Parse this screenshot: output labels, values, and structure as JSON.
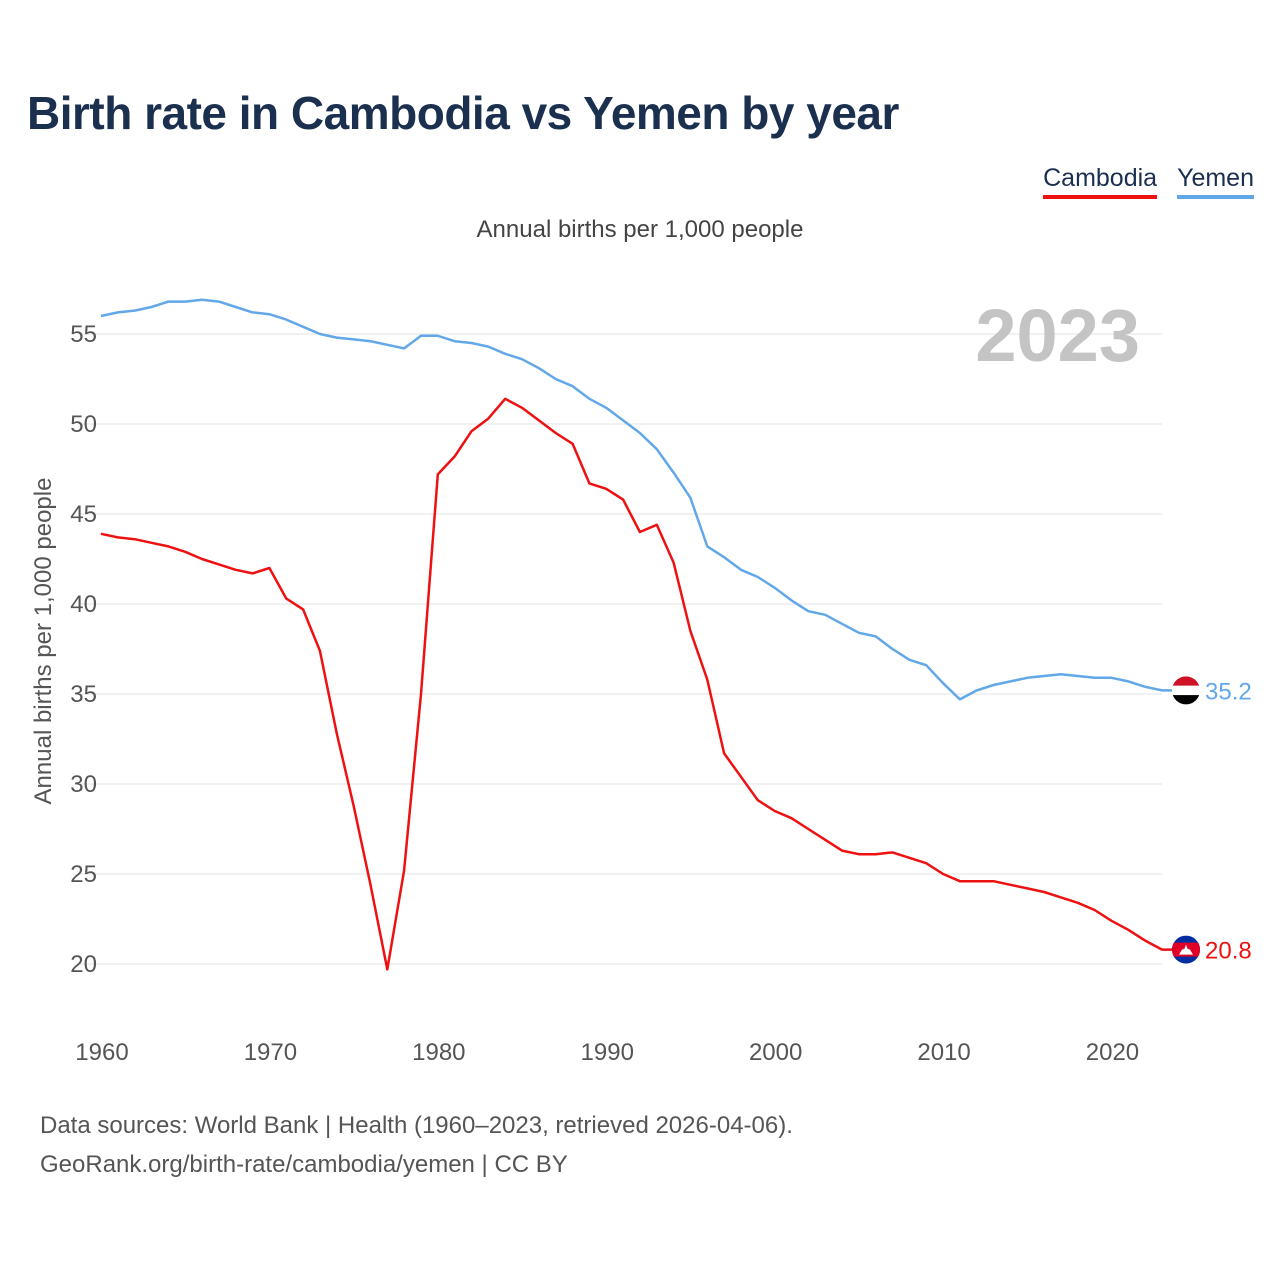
{
  "title": "Birth rate in Cambodia vs Yemen by year",
  "subtitle": "Annual births per 1,000 people",
  "legend": [
    {
      "label": "Cambodia",
      "color": "#ee1111"
    },
    {
      "label": "Yemen",
      "color": "#62a8e8"
    }
  ],
  "year_badge": "2023",
  "footer": {
    "line1": "Data sources: World Bank | Health (1960–2023, retrieved 2026-04-06).",
    "line2": "GeoRank.org/birth-rate/cambodia/yemen | CC BY"
  },
  "chart_data": {
    "type": "line",
    "title": "Birth rate in Cambodia vs Yemen by year",
    "xlabel": "",
    "ylabel": "Annual births per 1,000 people",
    "xlim": [
      1960,
      2023
    ],
    "ylim": [
      17,
      58
    ],
    "x_ticks": [
      1960,
      1970,
      1980,
      1990,
      2000,
      2010,
      2020
    ],
    "y_ticks": [
      20,
      25,
      30,
      35,
      40,
      45,
      50,
      55
    ],
    "grid": true,
    "legend_position": "top-right",
    "x": [
      1960,
      1961,
      1962,
      1963,
      1964,
      1965,
      1966,
      1967,
      1968,
      1969,
      1970,
      1971,
      1972,
      1973,
      1974,
      1975,
      1976,
      1977,
      1978,
      1979,
      1980,
      1981,
      1982,
      1983,
      1984,
      1985,
      1986,
      1987,
      1988,
      1989,
      1990,
      1991,
      1992,
      1993,
      1994,
      1995,
      1996,
      1997,
      1998,
      1999,
      2000,
      2001,
      2002,
      2003,
      2004,
      2005,
      2006,
      2007,
      2008,
      2009,
      2010,
      2011,
      2012,
      2013,
      2014,
      2015,
      2016,
      2017,
      2018,
      2019,
      2020,
      2021,
      2022,
      2023
    ],
    "series": [
      {
        "name": "Cambodia",
        "color": "#ee1111",
        "end_label": "20.8",
        "values": [
          43.9,
          43.7,
          43.6,
          43.4,
          43.2,
          42.9,
          42.5,
          42.2,
          41.9,
          41.7,
          42.0,
          40.3,
          39.7,
          37.4,
          32.8,
          28.8,
          24.4,
          19.7,
          25.2,
          35.0,
          47.2,
          48.2,
          49.6,
          50.3,
          51.4,
          50.9,
          50.2,
          49.5,
          48.9,
          46.7,
          46.4,
          45.8,
          44.0,
          44.4,
          42.3,
          38.5,
          35.8,
          31.7,
          30.4,
          29.1,
          28.5,
          28.1,
          27.5,
          26.9,
          26.3,
          26.1,
          26.1,
          26.2,
          25.9,
          25.6,
          25.0,
          24.6,
          24.6,
          24.6,
          24.4,
          24.2,
          24.0,
          23.7,
          23.4,
          23.0,
          22.4,
          21.9,
          21.3,
          20.8
        ]
      },
      {
        "name": "Yemen",
        "color": "#62a8e8",
        "end_label": "35.2",
        "values": [
          56.0,
          56.2,
          56.3,
          56.5,
          56.8,
          56.8,
          56.9,
          56.8,
          56.5,
          56.2,
          56.1,
          55.8,
          55.4,
          55.0,
          54.8,
          54.7,
          54.6,
          54.4,
          54.2,
          54.9,
          54.9,
          54.6,
          54.5,
          54.3,
          53.9,
          53.6,
          53.1,
          52.5,
          52.1,
          51.4,
          50.9,
          50.2,
          49.5,
          48.6,
          47.3,
          45.9,
          43.2,
          42.6,
          41.9,
          41.5,
          40.9,
          40.2,
          39.6,
          39.4,
          38.9,
          38.4,
          38.2,
          37.5,
          36.9,
          36.6,
          35.6,
          34.7,
          35.2,
          35.5,
          35.7,
          35.9,
          36.0,
          36.1,
          36.0,
          35.9,
          35.9,
          35.7,
          35.4,
          35.2
        ]
      }
    ]
  }
}
